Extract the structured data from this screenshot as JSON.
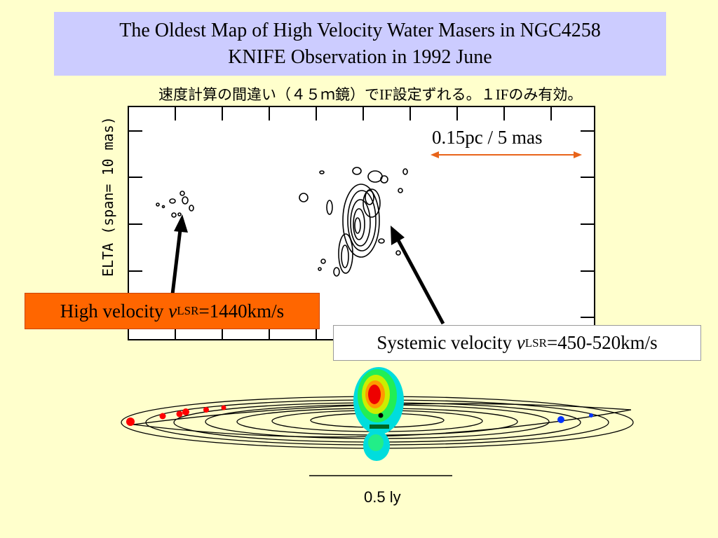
{
  "title": {
    "line1": "The Oldest Map of High Velocity Water Masers in NGC4258",
    "line2": "KNIFE Observation in 1992 June"
  },
  "note": {
    "part1": "速度計算の間違い（４５ｍ鏡）で",
    "part2": "IF",
    "part3": "設定ずれる。１",
    "part4": "IF",
    "part5": "のみ有効。"
  },
  "map": {
    "y_axis_label": "ELTA (span=  10 mas)",
    "scale_bar_label": "0.15pc / 5 mas",
    "scale_bar_color": "#e8641a"
  },
  "high_velocity": {
    "prefix": "High velocity ",
    "v": "v",
    "sub": "LSR",
    "value": "=1440km/s",
    "box_color": "#ff6600"
  },
  "systemic_velocity": {
    "prefix": "Systemic velocity ",
    "v": "v",
    "sub": "LSR",
    "value": "=450-520km/s"
  },
  "disk": {
    "scale_label": "0.5 ly",
    "redshifted_color": "#ff0000",
    "blueshifted_color": "#0033ff"
  }
}
